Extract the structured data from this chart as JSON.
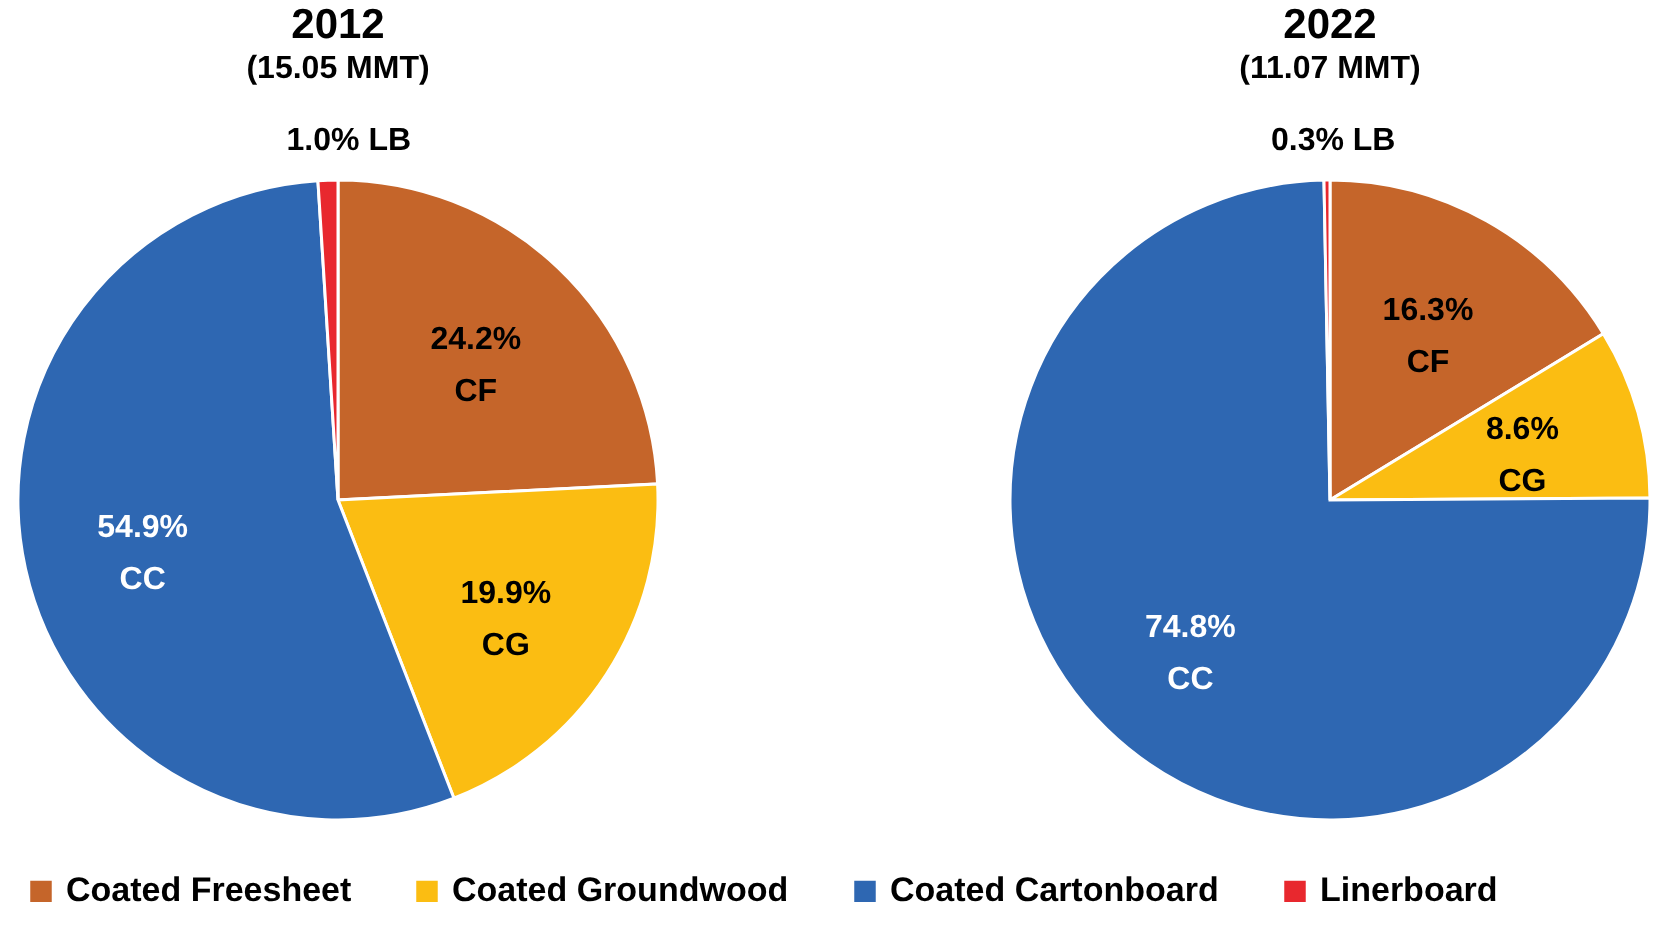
{
  "chart_data": [
    {
      "type": "pie",
      "title": "2012",
      "subtitle": "(15.05 MMT)",
      "categories": [
        "Coated Freesheet",
        "Coated Groundwood",
        "Coated Cartonboard",
        "Linerboard"
      ],
      "values": [
        24.2,
        19.9,
        54.9,
        1.0
      ],
      "colors": [
        "#c5652a",
        "#fbbd12",
        "#2e67b2",
        "#e8282e"
      ],
      "value_labels": [
        "24.2%\nCF",
        "19.9%\nCG",
        "54.9%\nCC",
        "1.0% LB"
      ],
      "legend": "bottom"
    },
    {
      "type": "pie",
      "title": "2022",
      "subtitle": "(11.07 MMT)",
      "categories": [
        null,
        null,
        null,
        null
      ],
      "values": [
        16.3,
        8.6,
        74.8,
        0.3
      ],
      "colors": [
        "#c5652a",
        "#fbbd12",
        "#2e67b2",
        "#e8282e"
      ],
      "value_labels": [
        "16.3%\nCF",
        "8.6%\nCG",
        "74.8%\nCC",
        "0.3% LB"
      ]
    }
  ]
}
